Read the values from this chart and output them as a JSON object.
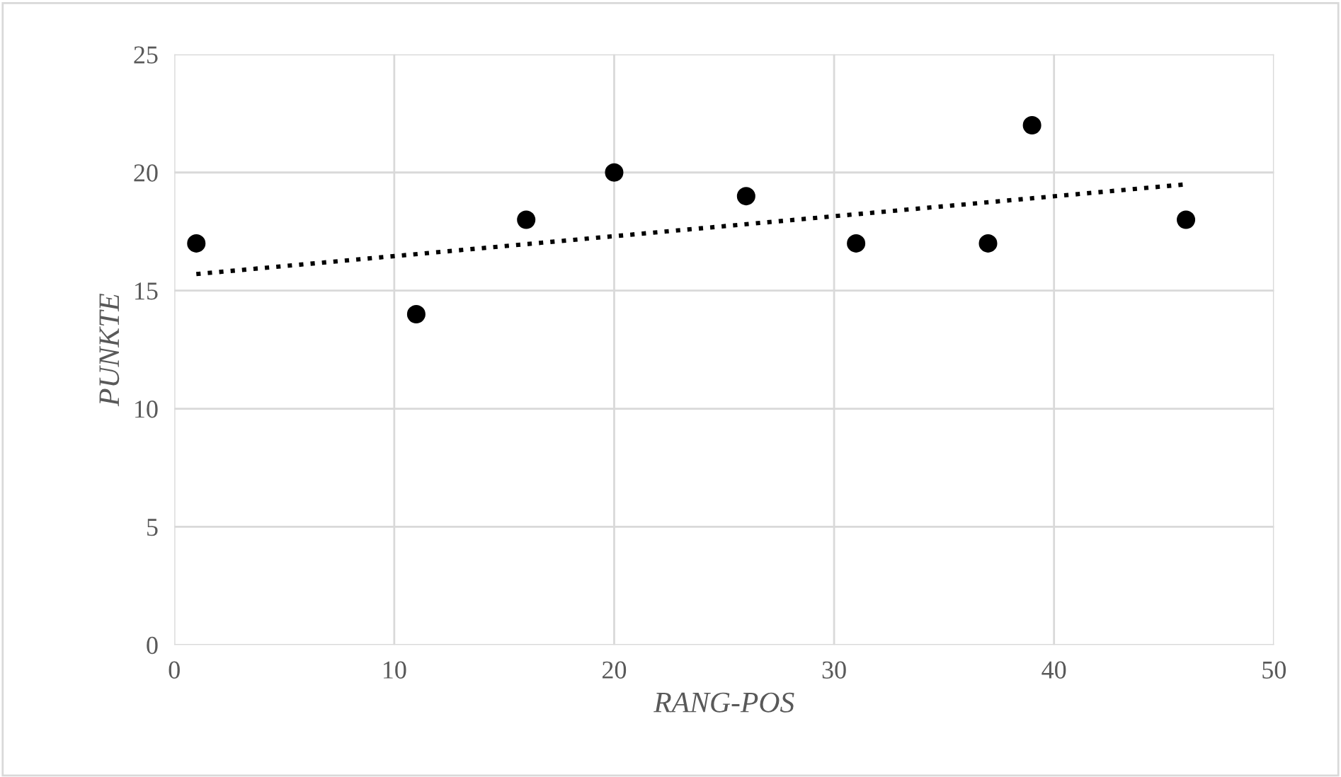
{
  "chart_data": {
    "type": "scatter",
    "xlabel": "RANG-POS",
    "ylabel": "PUNKTE",
    "series": [
      {
        "type": "scatter",
        "color": "#000000",
        "marker": "circle",
        "x": [
          1,
          11,
          16,
          20,
          26,
          31,
          37,
          39,
          46
        ],
        "values": [
          17,
          14,
          18,
          20,
          19,
          17,
          17,
          22,
          18
        ]
      },
      {
        "type": "line",
        "color": "#000000",
        "marker": "none",
        "line_style": "dotted",
        "x": [
          1,
          46
        ],
        "values": [
          15.7,
          19.5
        ]
      }
    ],
    "xlim": [
      0,
      50
    ],
    "xticks": [
      0,
      10,
      20,
      30,
      40,
      50
    ],
    "ylim": [
      0,
      25
    ],
    "yticks": [
      0,
      5,
      10,
      15,
      20,
      25
    ],
    "grid": true,
    "legend": false
  }
}
